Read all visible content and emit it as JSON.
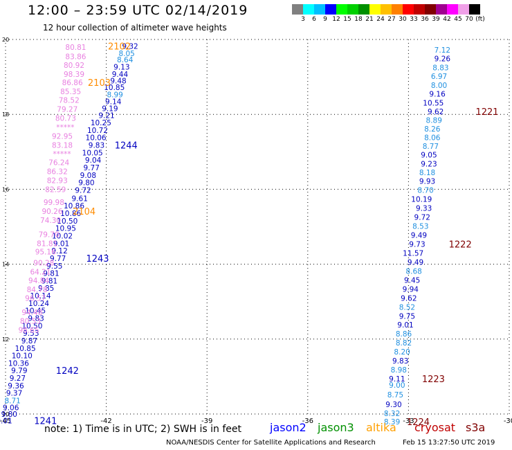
{
  "header": {
    "title": "12:00 – 23:59 UTC 02/14/2019",
    "subtitle": "12 hour collection of altimeter wave heights"
  },
  "colorbar": {
    "colors": [
      "#808080",
      "#00ffff",
      "#00bfff",
      "#0000ff",
      "#00ff00",
      "#00d000",
      "#009000",
      "#ffff00",
      "#ffc000",
      "#ff8000",
      "#ff0000",
      "#c00000",
      "#800000",
      "#a00090",
      "#ff00ff",
      "#f0a0e8",
      "#000000"
    ],
    "labels": [
      "3",
      "6",
      "9",
      "12",
      "15",
      "18",
      "21",
      "24",
      "27",
      "30",
      "33",
      "36",
      "39",
      "42",
      "45",
      "70",
      "(ft)"
    ]
  },
  "chart_data": {
    "type": "scatter",
    "title": "12 hour collection of altimeter wave heights",
    "units": "ft",
    "xlim": [
      -45,
      -30
    ],
    "ylim": [
      10,
      20
    ],
    "xticks": [
      "-45",
      "-42",
      "-39",
      "-36",
      "-33",
      "-30"
    ],
    "yticks": [
      "10",
      "12",
      "14",
      "16",
      "18",
      "20"
    ],
    "grid": true,
    "colors": {
      "c3": "#2090e0",
      "c4": "#0000c0",
      "c5": "#e880e0"
    },
    "left_track": [
      {
        "x": -41.05,
        "y": 19.82,
        "v": "9.32",
        "c": "c4"
      },
      {
        "x": -41.15,
        "y": 19.63,
        "v": "8.05",
        "c": "c3"
      },
      {
        "x": -41.2,
        "y": 19.46,
        "v": "8.64",
        "c": "c3"
      },
      {
        "x": -41.3,
        "y": 19.27,
        "v": "9.13",
        "c": "c4"
      },
      {
        "x": -41.35,
        "y": 19.08,
        "v": "9.44",
        "c": "c4"
      },
      {
        "x": -41.4,
        "y": 18.9,
        "v": "9.48",
        "c": "c4"
      },
      {
        "x": -41.45,
        "y": 18.72,
        "v": "10.85",
        "c": "c4"
      },
      {
        "x": -41.5,
        "y": 18.53,
        "v": "8.99",
        "c": "c3"
      },
      {
        "x": -41.55,
        "y": 18.35,
        "v": "9.14",
        "c": "c4"
      },
      {
        "x": -41.65,
        "y": 18.16,
        "v": "9.19",
        "c": "c4"
      },
      {
        "x": -41.75,
        "y": 17.98,
        "v": "9.21",
        "c": "c4"
      },
      {
        "x": -41.85,
        "y": 17.78,
        "v": "10.25",
        "c": "c4"
      },
      {
        "x": -41.95,
        "y": 17.58,
        "v": "10.72",
        "c": "c4"
      },
      {
        "x": -42.0,
        "y": 17.38,
        "v": "10.06",
        "c": "c4"
      },
      {
        "x": -42.05,
        "y": 17.18,
        "v": "9.83",
        "c": "c4"
      },
      {
        "x": -42.1,
        "y": 16.98,
        "v": "10.05",
        "c": "c4"
      },
      {
        "x": -42.15,
        "y": 16.78,
        "v": "9.04",
        "c": "c4"
      },
      {
        "x": -42.2,
        "y": 16.58,
        "v": "9.77",
        "c": "c4"
      },
      {
        "x": -42.3,
        "y": 16.38,
        "v": "9.08",
        "c": "c4"
      },
      {
        "x": -42.35,
        "y": 16.18,
        "v": "9.80",
        "c": "c4"
      },
      {
        "x": -42.45,
        "y": 15.98,
        "v": "9.72",
        "c": "c4"
      },
      {
        "x": -42.55,
        "y": 15.76,
        "v": "9.61",
        "c": "c4"
      },
      {
        "x": -42.65,
        "y": 15.56,
        "v": "10.86",
        "c": "c4"
      },
      {
        "x": -42.75,
        "y": 15.36,
        "v": "10.86",
        "c": "c4"
      },
      {
        "x": -42.85,
        "y": 15.16,
        "v": "10.50",
        "c": "c4"
      },
      {
        "x": -42.9,
        "y": 14.96,
        "v": "10.95",
        "c": "c4"
      },
      {
        "x": -43.0,
        "y": 14.76,
        "v": "10.02",
        "c": "c4"
      },
      {
        "x": -43.1,
        "y": 14.56,
        "v": "9.01",
        "c": "c4"
      },
      {
        "x": -43.15,
        "y": 14.36,
        "v": "9.12",
        "c": "c4"
      },
      {
        "x": -43.2,
        "y": 14.16,
        "v": "9.77",
        "c": "c4"
      },
      {
        "x": -43.3,
        "y": 13.96,
        "v": "9.55",
        "c": "c4"
      },
      {
        "x": -43.4,
        "y": 13.76,
        "v": "9.81",
        "c": "c4"
      },
      {
        "x": -43.45,
        "y": 13.56,
        "v": "9.81",
        "c": "c4"
      },
      {
        "x": -43.55,
        "y": 13.36,
        "v": "9.85",
        "c": "c4"
      },
      {
        "x": -43.65,
        "y": 13.16,
        "v": "10.14",
        "c": "c4"
      },
      {
        "x": -43.7,
        "y": 12.96,
        "v": "10.24",
        "c": "c4"
      },
      {
        "x": -43.8,
        "y": 12.76,
        "v": "10.45",
        "c": "c4"
      },
      {
        "x": -43.85,
        "y": 12.56,
        "v": "9.83",
        "c": "c4"
      },
      {
        "x": -43.9,
        "y": 12.36,
        "v": "10.50",
        "c": "c4"
      },
      {
        "x": -44.0,
        "y": 12.16,
        "v": "9.53",
        "c": "c4"
      },
      {
        "x": -44.05,
        "y": 11.96,
        "v": "9.87",
        "c": "c4"
      },
      {
        "x": -44.1,
        "y": 11.76,
        "v": "10.85",
        "c": "c4"
      },
      {
        "x": -44.2,
        "y": 11.56,
        "v": "10.10",
        "c": "c4"
      },
      {
        "x": -44.3,
        "y": 11.36,
        "v": "10.36",
        "c": "c4"
      },
      {
        "x": -44.35,
        "y": 11.16,
        "v": "9.79",
        "c": "c4"
      },
      {
        "x": -44.4,
        "y": 10.96,
        "v": "9.27",
        "c": "c4"
      },
      {
        "x": -44.45,
        "y": 10.76,
        "v": "9.36",
        "c": "c4"
      },
      {
        "x": -44.5,
        "y": 10.56,
        "v": "9.37",
        "c": "c4"
      },
      {
        "x": -44.55,
        "y": 10.36,
        "v": "8.71",
        "c": "c3"
      },
      {
        "x": -44.6,
        "y": 10.18,
        "v": "9.06",
        "c": "c4"
      },
      {
        "x": -44.65,
        "y": 10.0,
        "v": "9.80",
        "c": "c4"
      },
      {
        "x": -44.8,
        "y": 9.82,
        "v": "9.01",
        "c": "c4"
      }
    ],
    "pink_track": [
      {
        "x": -42.6,
        "y": 19.8,
        "v": "80.81"
      },
      {
        "x": -42.6,
        "y": 19.55,
        "v": "83.86"
      },
      {
        "x": -42.65,
        "y": 19.32,
        "v": "80.92"
      },
      {
        "x": -42.65,
        "y": 19.08,
        "v": "98.39"
      },
      {
        "x": -42.7,
        "y": 18.85,
        "v": "86.86"
      },
      {
        "x": -42.75,
        "y": 18.61,
        "v": "85.35"
      },
      {
        "x": -42.8,
        "y": 18.38,
        "v": "78.52"
      },
      {
        "x": -42.85,
        "y": 18.14,
        "v": "79.27"
      },
      {
        "x": -42.9,
        "y": 17.9,
        "v": "80.73"
      },
      {
        "x": -42.95,
        "y": 17.66,
        "v": "*****"
      },
      {
        "x": -43.0,
        "y": 17.42,
        "v": "92.95"
      },
      {
        "x": -43.0,
        "y": 17.18,
        "v": "83.18"
      },
      {
        "x": -43.05,
        "y": 16.95,
        "v": "*****"
      },
      {
        "x": -43.1,
        "y": 16.72,
        "v": "76.24"
      },
      {
        "x": -43.15,
        "y": 16.48,
        "v": "86.32"
      },
      {
        "x": -43.15,
        "y": 16.24,
        "v": "82.93"
      },
      {
        "x": -43.2,
        "y": 16.0,
        "v": "82.59"
      },
      {
        "x": -43.25,
        "y": 15.66,
        "v": "99.98"
      },
      {
        "x": -43.3,
        "y": 15.42,
        "v": "90.26"
      },
      {
        "x": -43.35,
        "y": 15.18,
        "v": "74.30"
      },
      {
        "x": -43.4,
        "y": 14.8,
        "v": "79.70"
      },
      {
        "x": -43.45,
        "y": 14.56,
        "v": "81.81"
      },
      {
        "x": -43.5,
        "y": 14.33,
        "v": "95.16"
      },
      {
        "x": -43.55,
        "y": 14.04,
        "v": "90.28"
      },
      {
        "x": -43.65,
        "y": 13.8,
        "v": "64.21"
      },
      {
        "x": -43.7,
        "y": 13.57,
        "v": "94.84"
      },
      {
        "x": -43.75,
        "y": 13.33,
        "v": "84.78"
      },
      {
        "x": -43.8,
        "y": 13.1,
        "v": "96.57"
      },
      {
        "x": -43.9,
        "y": 12.72,
        "v": "94.48"
      },
      {
        "x": -43.95,
        "y": 12.49,
        "v": "80.53"
      },
      {
        "x": -44.0,
        "y": 12.25,
        "v": "98.65"
      }
    ],
    "right_track": [
      {
        "x": -31.75,
        "y": 19.72,
        "v": "7.12",
        "c": "c3"
      },
      {
        "x": -31.75,
        "y": 19.49,
        "v": "9.26",
        "c": "c4"
      },
      {
        "x": -31.8,
        "y": 19.25,
        "v": "8.83",
        "c": "c3"
      },
      {
        "x": -31.85,
        "y": 19.02,
        "v": "6.97",
        "c": "c3"
      },
      {
        "x": -31.85,
        "y": 18.78,
        "v": "8.00",
        "c": "c3"
      },
      {
        "x": -31.9,
        "y": 18.55,
        "v": "9.16",
        "c": "c4"
      },
      {
        "x": -31.95,
        "y": 18.31,
        "v": "10.55",
        "c": "c4"
      },
      {
        "x": -31.95,
        "y": 18.08,
        "v": "9.62",
        "c": "c4"
      },
      {
        "x": -32.0,
        "y": 17.85,
        "v": "8.89",
        "c": "c3"
      },
      {
        "x": -32.05,
        "y": 17.62,
        "v": "8.26",
        "c": "c3"
      },
      {
        "x": -32.05,
        "y": 17.38,
        "v": "8.06",
        "c": "c3"
      },
      {
        "x": -32.1,
        "y": 17.15,
        "v": "8.77",
        "c": "c3"
      },
      {
        "x": -32.15,
        "y": 16.92,
        "v": "9.05",
        "c": "c4"
      },
      {
        "x": -32.15,
        "y": 16.68,
        "v": "9.23",
        "c": "c4"
      },
      {
        "x": -32.2,
        "y": 16.45,
        "v": "8.18",
        "c": "c3"
      },
      {
        "x": -32.2,
        "y": 16.22,
        "v": "9.93",
        "c": "c4"
      },
      {
        "x": -32.25,
        "y": 15.98,
        "v": "8.70",
        "c": "c3"
      },
      {
        "x": -32.3,
        "y": 15.74,
        "v": "10.19",
        "c": "c4"
      },
      {
        "x": -32.3,
        "y": 15.5,
        "v": "9.33",
        "c": "c4"
      },
      {
        "x": -32.35,
        "y": 15.26,
        "v": "9.72",
        "c": "c4"
      },
      {
        "x": -32.4,
        "y": 15.02,
        "v": "8.53",
        "c": "c3"
      },
      {
        "x": -32.45,
        "y": 14.78,
        "v": "9.49",
        "c": "c4"
      },
      {
        "x": -32.5,
        "y": 14.54,
        "v": "9.73",
        "c": "c4"
      },
      {
        "x": -32.55,
        "y": 14.3,
        "v": "11.57",
        "c": "c4"
      },
      {
        "x": -32.55,
        "y": 14.06,
        "v": "9.49",
        "c": "c4"
      },
      {
        "x": -32.6,
        "y": 13.82,
        "v": "8.68",
        "c": "c3"
      },
      {
        "x": -32.65,
        "y": 13.58,
        "v": "9.45",
        "c": "c4"
      },
      {
        "x": -32.7,
        "y": 13.34,
        "v": "9.94",
        "c": "c4"
      },
      {
        "x": -32.75,
        "y": 13.1,
        "v": "9.62",
        "c": "c4"
      },
      {
        "x": -32.8,
        "y": 12.86,
        "v": "8.52",
        "c": "c3"
      },
      {
        "x": -32.8,
        "y": 12.62,
        "v": "9.75",
        "c": "c4"
      },
      {
        "x": -32.85,
        "y": 12.38,
        "v": "9.01",
        "c": "c4"
      },
      {
        "x": -32.9,
        "y": 12.14,
        "v": "8.86",
        "c": "c3"
      },
      {
        "x": -32.9,
        "y": 11.9,
        "v": "8.82",
        "c": "c3"
      },
      {
        "x": -32.95,
        "y": 11.66,
        "v": "8.20",
        "c": "c3"
      },
      {
        "x": -33.0,
        "y": 11.42,
        "v": "9.83",
        "c": "c4"
      },
      {
        "x": -33.05,
        "y": 11.18,
        "v": "8.98",
        "c": "c3"
      },
      {
        "x": -33.1,
        "y": 10.94,
        "v": "9.11",
        "c": "c4"
      },
      {
        "x": -33.1,
        "y": 10.78,
        "v": "9.00",
        "c": "c3"
      },
      {
        "x": -33.15,
        "y": 10.52,
        "v": "8.75",
        "c": "c3"
      },
      {
        "x": -33.2,
        "y": 10.26,
        "v": "9.30",
        "c": "c4"
      },
      {
        "x": -33.25,
        "y": 10.02,
        "v": "8.32",
        "c": "c3"
      },
      {
        "x": -33.25,
        "y": 9.8,
        "v": "8.39",
        "c": "c3"
      }
    ],
    "pass_labels": [
      {
        "x": -41.95,
        "y": 19.82,
        "text": "2102",
        "color": "#ff8c00"
      },
      {
        "x": -42.55,
        "y": 18.85,
        "text": "2103",
        "color": "#ff8c00"
      },
      {
        "x": -41.75,
        "y": 17.18,
        "text": "1244",
        "color": "#0000c0"
      },
      {
        "x": -43.0,
        "y": 15.42,
        "text": "2104",
        "color": "#ff8c00"
      },
      {
        "x": -42.6,
        "y": 14.16,
        "text": "1243",
        "color": "#0000c0"
      },
      {
        "x": -43.5,
        "y": 11.16,
        "text": "1242",
        "color": "#0000c0"
      },
      {
        "x": -44.15,
        "y": 9.82,
        "text": "1241",
        "color": "#0000c0"
      },
      {
        "x": -31.0,
        "y": 18.08,
        "text": "1221",
        "color": "#800000"
      },
      {
        "x": -31.8,
        "y": 14.54,
        "text": "1222",
        "color": "#800000"
      },
      {
        "x": -32.6,
        "y": 10.94,
        "text": "1223",
        "color": "#800000"
      },
      {
        "x": -33.05,
        "y": 9.8,
        "text": "1224",
        "color": "#800000"
      }
    ]
  },
  "footer": {
    "note": "note:  1) Time is in UTC;  2) SWH is in feet",
    "legend": [
      {
        "label": "jason2",
        "color": "#0000ff"
      },
      {
        "label": "jason3",
        "color": "#009000"
      },
      {
        "label": "altika",
        "color": "#ffa000"
      },
      {
        "label": "cryosat",
        "color": "#c00000"
      },
      {
        "label": "s3a",
        "color": "#800000"
      }
    ],
    "credit": "NOAA/NESDIS Center for Satellite Applications and Research",
    "timestamp": "Feb 15 13:27:50 UTC 2019"
  }
}
